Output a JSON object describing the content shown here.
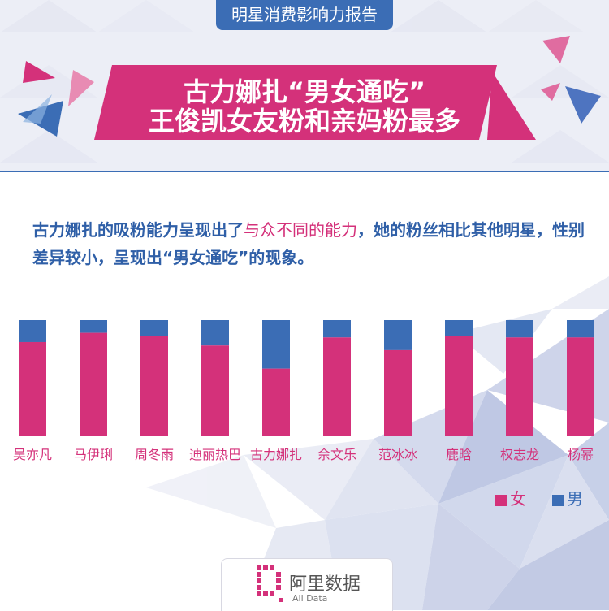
{
  "header": {
    "tag": "明星消费影响力报告",
    "title_line1": "古力娜扎“男女通吃”",
    "title_line2": "王俊凯女友粉和亲妈粉最多"
  },
  "intro": {
    "before": "古力娜扎的吸粉能力呈现出了",
    "highlight": "与众不同的能力",
    "after": "，她的粉丝相比其他明星，性别差异较小，呈现出“男女通吃”的现象。"
  },
  "colors": {
    "female": "#d4317a",
    "male": "#3b6db5",
    "accent_blue": "#3b6db5"
  },
  "chart_data": {
    "type": "bar",
    "stacked": true,
    "normalized_100": true,
    "categories": [
      "吴亦凡",
      "马伊琍",
      "周冬雨",
      "迪丽热巴",
      "古力娜扎",
      "佘文乐",
      "范冰冰",
      "鹿晗",
      "权志龙",
      "杨幂"
    ],
    "series": [
      {
        "name": "女",
        "values": [
          81,
          89,
          86,
          78,
          58,
          85,
          74,
          86,
          85,
          85
        ]
      },
      {
        "name": "男",
        "values": [
          19,
          11,
          14,
          22,
          42,
          15,
          26,
          14,
          15,
          15
        ]
      }
    ],
    "legend": {
      "position": "bottom-right",
      "female_label": "女",
      "male_label": "男"
    },
    "grid": false,
    "ylim": [
      0,
      100
    ]
  },
  "footer": {
    "brand": "阿里数据",
    "brand_en": "Ali Data"
  }
}
